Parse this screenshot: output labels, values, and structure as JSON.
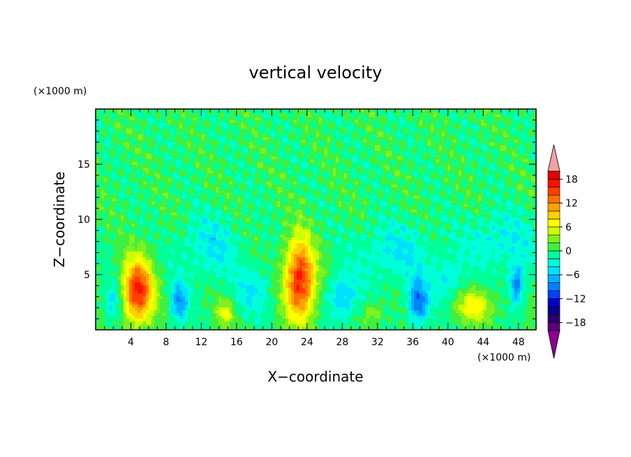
{
  "chart_data": {
    "type": "heatmap",
    "title": "vertical velocity",
    "xlabel": "X−coordinate",
    "ylabel": "Z−coordinate",
    "x_unit": "(×1000 m)",
    "y_unit": "(×1000 m)",
    "xlim": [
      0,
      50
    ],
    "ylim": [
      0,
      20
    ],
    "x_ticks": [
      4,
      8,
      12,
      16,
      20,
      24,
      28,
      32,
      36,
      40,
      44,
      48
    ],
    "y_ticks": [
      5,
      10,
      15
    ],
    "x_tick_labels": [
      "4",
      "8",
      "12",
      "16",
      "20",
      "24",
      "28",
      "32",
      "36",
      "40",
      "44",
      "48"
    ],
    "y_tick_labels": [
      "5",
      "10",
      "15"
    ],
    "colorbar": {
      "levels": [
        -20,
        -18,
        -16,
        -14,
        -12,
        -10,
        -8,
        -6,
        -4,
        -2,
        0,
        2,
        4,
        6,
        8,
        10,
        12,
        14,
        16,
        18,
        20
      ],
      "tick_values": [
        18,
        12,
        6,
        0,
        -6,
        -12,
        -18
      ],
      "tick_labels": [
        "18",
        "12",
        "6",
        "0",
        "−6",
        "−12",
        "−18"
      ],
      "colors": [
        "#5a007f",
        "#2c006e",
        "#0a008a",
        "#0000c8",
        "#0040ff",
        "#0080ff",
        "#00b0ff",
        "#00e0ff",
        "#00ffd8",
        "#00ff99",
        "#40f040",
        "#80f020",
        "#ccff00",
        "#ffff00",
        "#ffd000",
        "#ffa000",
        "#ff7000",
        "#ff4000",
        "#ff1000",
        "#e00000"
      ],
      "under_color": "#8a0090",
      "over_color": "#f4a0a0"
    },
    "features": [
      {
        "x": 4.8,
        "z": 3.5,
        "peak": 17,
        "sx": 1.2,
        "sz": 2.0
      },
      {
        "x": 23.2,
        "z": 4.5,
        "peak": 17,
        "sx": 1.2,
        "sz": 2.6
      },
      {
        "x": 43.0,
        "z": 2.2,
        "peak": 7,
        "sx": 1.6,
        "sz": 1.0
      },
      {
        "x": 14.7,
        "z": 1.5,
        "peak": 6,
        "sx": 0.7,
        "sz": 0.8
      },
      {
        "x": 31.5,
        "z": 1.5,
        "peak": 4,
        "sx": 0.8,
        "sz": 0.7
      },
      {
        "x": 9.5,
        "z": 2.5,
        "peak": -8,
        "sx": 0.7,
        "sz": 1.3
      },
      {
        "x": 36.6,
        "z": 2.5,
        "peak": -10,
        "sx": 0.8,
        "sz": 1.4
      },
      {
        "x": 47.8,
        "z": 4.0,
        "peak": -9,
        "sx": 0.6,
        "sz": 1.3
      },
      {
        "x": 28.0,
        "z": 3.0,
        "peak": -6,
        "sx": 1.2,
        "sz": 1.5
      },
      {
        "x": 2.0,
        "z": 2.5,
        "peak": -5,
        "sx": 0.7,
        "sz": 1.3
      },
      {
        "x": 13.0,
        "z": 7.5,
        "peak": -4,
        "sx": 2.5,
        "sz": 2.0
      },
      {
        "x": 34.0,
        "z": 7.0,
        "peak": -4,
        "sx": 3.0,
        "sz": 2.0
      },
      {
        "x": 46.0,
        "z": 8.0,
        "peak": -4,
        "sx": 3.0,
        "sz": 1.8
      },
      {
        "x": 18.0,
        "z": 3.5,
        "peak": -4,
        "sx": 1.5,
        "sz": 1.5
      },
      {
        "x": 40.0,
        "z": 4.5,
        "peak": -4,
        "sx": 1.2,
        "sz": 1.5
      }
    ]
  }
}
